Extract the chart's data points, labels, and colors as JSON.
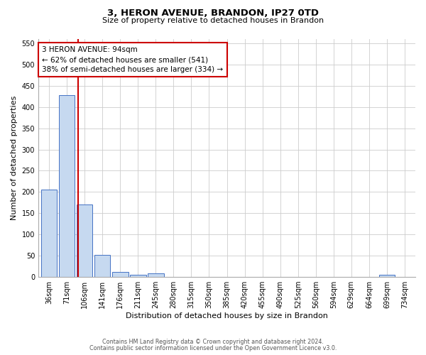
{
  "title_line1": "3, HERON AVENUE, BRANDON, IP27 0TD",
  "title_line2": "Size of property relative to detached houses in Brandon",
  "xlabel": "Distribution of detached houses by size in Brandon",
  "ylabel": "Number of detached properties",
  "categories": [
    "36sqm",
    "71sqm",
    "106sqm",
    "141sqm",
    "176sqm",
    "211sqm",
    "245sqm",
    "280sqm",
    "315sqm",
    "350sqm",
    "385sqm",
    "420sqm",
    "455sqm",
    "490sqm",
    "525sqm",
    "560sqm",
    "594sqm",
    "629sqm",
    "664sqm",
    "699sqm",
    "734sqm"
  ],
  "bar_values": [
    205,
    428,
    170,
    52,
    12,
    5,
    8,
    0,
    0,
    0,
    0,
    0,
    0,
    0,
    0,
    0,
    0,
    0,
    0,
    5,
    0
  ],
  "bar_color": "#c6d9f0",
  "bar_edge_color": "#4472c4",
  "red_line_x": 1.62,
  "annotation_text": "3 HERON AVENUE: 94sqm\n← 62% of detached houses are smaller (541)\n38% of semi-detached houses are larger (334) →",
  "annotation_box_color": "#ffffff",
  "annotation_box_edge": "#cc0000",
  "ylim": [
    0,
    560
  ],
  "yticks": [
    0,
    50,
    100,
    150,
    200,
    250,
    300,
    350,
    400,
    450,
    500,
    550
  ],
  "footer_line1": "Contains HM Land Registry data © Crown copyright and database right 2024.",
  "footer_line2": "Contains public sector information licensed under the Open Government Licence v3.0.",
  "background_color": "#ffffff",
  "grid_color": "#cccccc",
  "title_fontsize": 9.5,
  "subtitle_fontsize": 8,
  "ylabel_fontsize": 8,
  "xlabel_fontsize": 8,
  "tick_fontsize": 7,
  "footer_fontsize": 5.8,
  "annot_fontsize": 7.5
}
